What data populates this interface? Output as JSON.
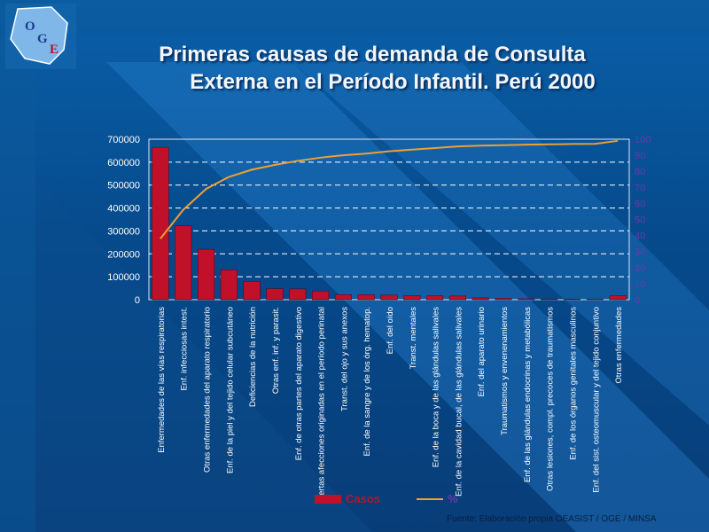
{
  "slide": {
    "title_line1": "Primeras causas de demanda de Consulta",
    "title_line2": "Externa en el Período Infantil. Perú 2000",
    "logo_letters": [
      "O",
      "G",
      "E"
    ],
    "source": "Fuente: Elaboración propia OEASIST / OGE / MINSA"
  },
  "colors": {
    "bar": "#c0102a",
    "line": "#f0a030",
    "left_axis_text": "#ffffff",
    "right_axis_text": "#6a3aa8"
  },
  "chart_data": {
    "type": "bar",
    "title": "",
    "xlabel": "",
    "ylabel": "",
    "categories": [
      "Enfermedades de las vías respiratorias",
      "Enf. infecciosas intest.",
      "Otras enfermedades del aparato respiratorio",
      "Enf. de la piel y del tejido celular subcutáneo",
      "Deficiencias de la nutrición",
      "Otras enf. inf. y parasit.",
      "Enf. de otras partes del aparato digestivo",
      "Ciertas afecciones originadas en el período perinatal",
      "Transt. del ojo y sus anexos",
      "Enf. de la sangre y de los órg. hematop.",
      "Enf. del oído",
      "Transt. mentales",
      "Enf. de la boca y de las glándulas salivales",
      "Enf. de la cavidad bucal, de las glándulas salivales",
      "Enf. del aparato urinario",
      "Traumatismos y envenenamientos",
      "Enf. de las glándulas endocrinas y metabólicas",
      "Otras lesiones, compl. precoces de traumatismos",
      "Enf. de los órganos genitales masculinos",
      "Enf. del sist. osteomuscular y del tejido conjuntivo",
      "Otras enfermedades"
    ],
    "series": [
      {
        "name": "Casos",
        "axis": "left",
        "values": [
          665000,
          322000,
          220000,
          130000,
          80000,
          48000,
          47000,
          38000,
          22000,
          22000,
          20000,
          18000,
          17000,
          16000,
          8000,
          6000,
          4000,
          3000,
          2000,
          1500,
          17000
        ]
      },
      {
        "name": "%",
        "axis": "right",
        "values": [
          38,
          56,
          69,
          76.5,
          81,
          84,
          86.5,
          88.5,
          90,
          91,
          92.5,
          93.5,
          94.5,
          95.5,
          96,
          96.3,
          96.6,
          96.8,
          97,
          97.1,
          99
        ]
      }
    ],
    "ylim": [
      0,
      700000
    ],
    "yticks": [
      "0",
      "100000",
      "200000",
      "300000",
      "400000",
      "500000",
      "600000",
      "700000"
    ],
    "y2lim": [
      0,
      100
    ],
    "y2ticks": [
      "0",
      "10",
      "20",
      "30",
      "40",
      "50",
      "60",
      "70",
      "80",
      "90",
      "100"
    ],
    "grid": true,
    "legend_position": "bottom"
  }
}
